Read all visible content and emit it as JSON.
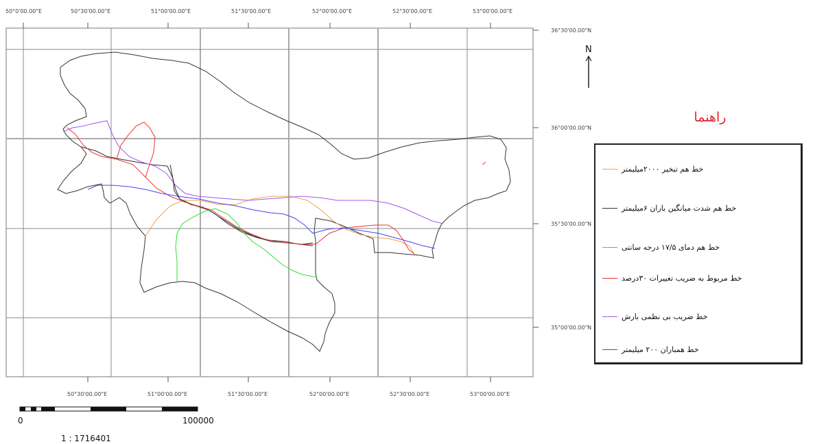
{
  "map": {
    "longitude_labels_top": [
      "50°0'00.00\"E",
      "50°30'00.00\"E",
      "51°00'00.00\"E",
      "51°30'00.00\"E",
      "52°00'00.00\"E",
      "52°30'00.00\"E",
      "53°00'00.00\"E"
    ],
    "longitude_labels_bottom": [
      "50°30'00.00\"E",
      "51°00'00.00\"E",
      "51°30'00.00\"E",
      "52°00'00.00\"E",
      "52°30'00.00\"E",
      "53°00'00.00\"E"
    ],
    "latitude_labels": [
      "36°30'00.00\"N",
      "36°00'00.00\"N",
      "35°30'00.00\"N",
      "35°00'00.00\"N"
    ],
    "north_label": "N",
    "scale_bar": {
      "start_label": "0",
      "end_label": "100000",
      "ratio": "1 : 1716401"
    }
  },
  "legend": {
    "title": "راهنما",
    "items": [
      {
        "label": "خط هم تبخیر ۲۰۰۰میلیمتر",
        "color": "#f0a050"
      },
      {
        "label": "خط هم شدت میانگین باران ۶میلیمتر",
        "color": "#333333"
      },
      {
        "label": "خط هم دمای ۱۷/۵ درجه سانتی",
        "color": "#33dd33"
      },
      {
        "label": "خط مربوط به ضریب تغییرات ۳۰درصد",
        "color": "#ee3333"
      },
      {
        "label": "خط ضریب بی نظمی بارش",
        "color": "#a355ee"
      },
      {
        "label": "خط همباران ۲۰۰ میلیمتر",
        "color": "#4444ee"
      }
    ]
  }
}
